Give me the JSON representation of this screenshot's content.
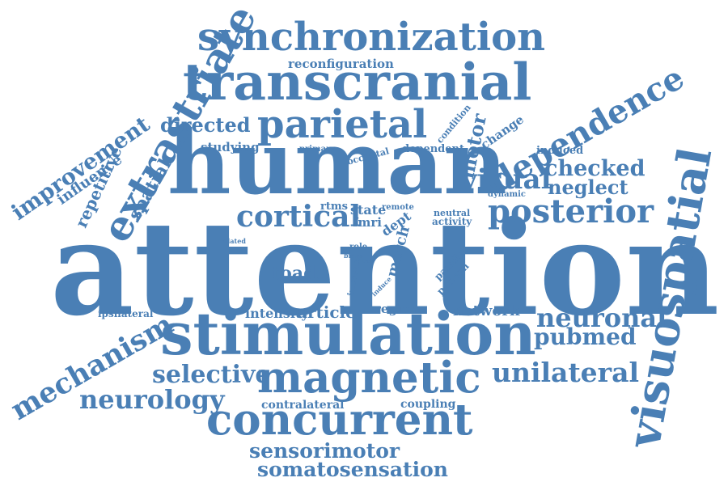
{
  "color": "#4a7fb5",
  "words": [
    "attention",
    "human",
    "stimulation",
    "transcranial",
    "visuospatial",
    "synchronization",
    "magnetic",
    "concurrent",
    "parietal",
    "extrastriate",
    "dependence",
    "posterior",
    "mechanism",
    "improvement",
    "cortical",
    "neuronal",
    "unilateral",
    "neurology",
    "selective",
    "sensorimotor",
    "somatosensation",
    "directed",
    "visual",
    "checked",
    "neglect",
    "pubmed",
    "repetitive",
    "spatial",
    "influence",
    "motor",
    "toadd",
    "reconfiguration",
    "article",
    "intensity",
    "network",
    "region",
    "studying",
    "condition",
    "change",
    "dependent",
    "primary",
    "occipital",
    "induced",
    "dynamic",
    "contralateral",
    "coupling",
    "rtms",
    "state",
    "fmri",
    "remote",
    "neutral",
    "activity",
    "dept",
    "march",
    "role",
    "brain",
    "task",
    "increase",
    "parallel",
    "pattern",
    "induce",
    "related",
    "ipsilateral"
  ]
}
